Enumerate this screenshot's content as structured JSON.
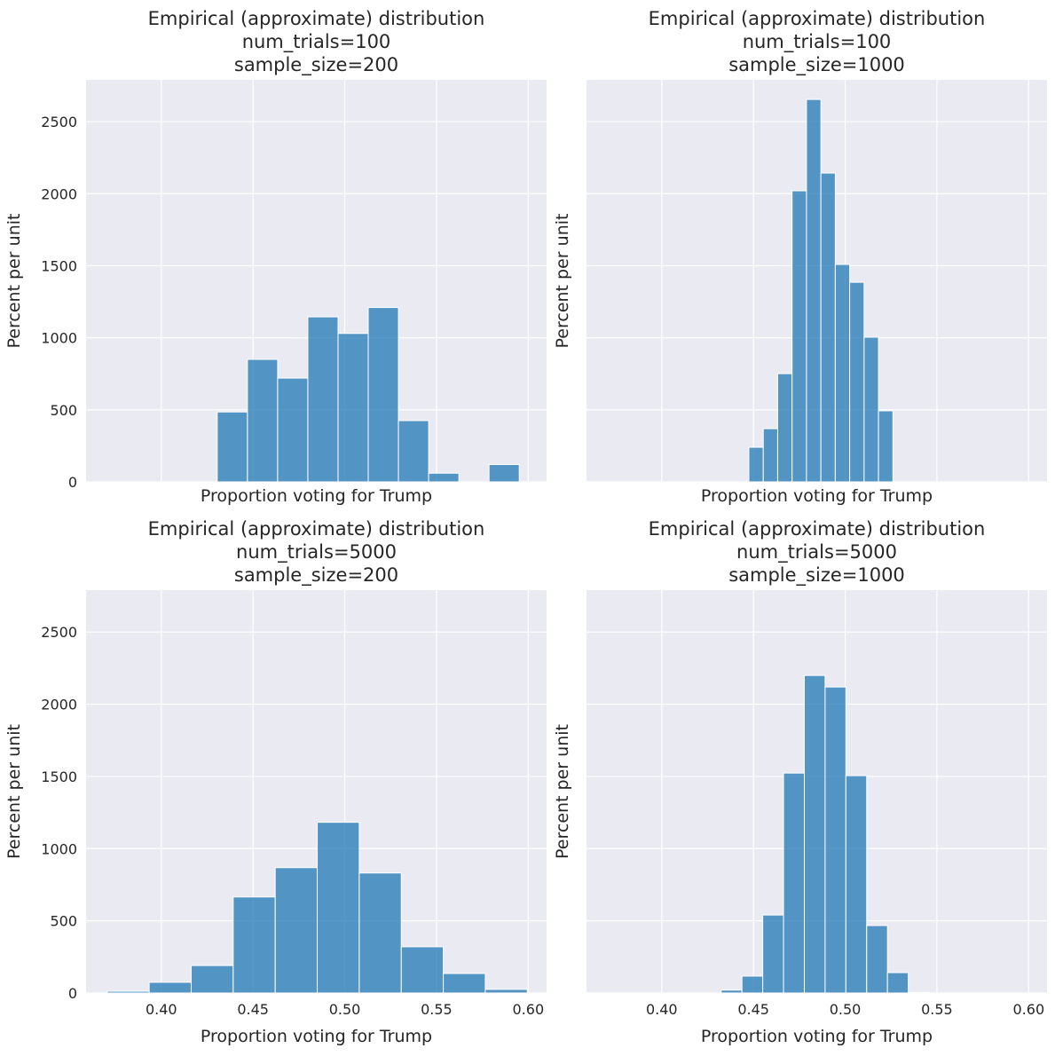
{
  "chart_data": [
    {
      "type": "bar",
      "title": [
        "Empirical (approximate) distribution",
        "num_trials=100",
        "sample_size=200"
      ],
      "xlabel": "Proportion voting for Trump",
      "ylabel": "Percent per unit",
      "xlim": [
        0.359,
        0.61
      ],
      "ylim": [
        0,
        2790
      ],
      "grid": true,
      "show_xticklabels": false,
      "show_yticklabels": true,
      "bin_start": 0.4305,
      "bin_width": 0.01646,
      "values": [
        485,
        850,
        720,
        1145,
        1030,
        1210,
        425,
        60,
        0,
        120
      ]
    },
    {
      "type": "bar",
      "title": [
        "Empirical (approximate) distribution",
        "num_trials=100",
        "sample_size=1000"
      ],
      "xlabel": "Proportion voting for Trump",
      "ylabel": "Percent per unit",
      "xlim": [
        0.359,
        0.61
      ],
      "ylim": [
        0,
        2790
      ],
      "grid": true,
      "show_xticklabels": false,
      "show_yticklabels": false,
      "bin_start": 0.4475,
      "bin_width": 0.00785,
      "values": [
        240,
        369,
        751,
        2020,
        2654,
        2143,
        1509,
        1385,
        1004,
        493
      ]
    },
    {
      "type": "bar",
      "title": [
        "Empirical (approximate) distribution",
        "num_trials=5000",
        "sample_size=200"
      ],
      "xlabel": "Proportion voting for Trump",
      "ylabel": "Percent per unit",
      "xlim": [
        0.359,
        0.61
      ],
      "ylim": [
        0,
        2790
      ],
      "grid": true,
      "show_xticklabels": true,
      "show_yticklabels": true,
      "bin_start": 0.3705,
      "bin_width": 0.0229,
      "values": [
        12,
        74,
        190,
        665,
        868,
        1182,
        831,
        320,
        135,
        25
      ]
    },
    {
      "type": "bar",
      "title": [
        "Empirical (approximate) distribution",
        "num_trials=5000",
        "sample_size=1000"
      ],
      "xlabel": "Proportion voting for Trump",
      "ylabel": "Percent per unit",
      "xlim": [
        0.359,
        0.61
      ],
      "ylim": [
        0,
        2790
      ],
      "grid": true,
      "show_xticklabels": true,
      "show_yticklabels": false,
      "bin_start": 0.4324,
      "bin_width": 0.01133,
      "values": [
        20,
        117,
        540,
        1523,
        2199,
        2119,
        1505,
        467,
        141,
        4
      ]
    }
  ],
  "xticks": [
    "0.40",
    "0.45",
    "0.50",
    "0.55",
    "0.60"
  ],
  "yticks": [
    "0",
    "500",
    "1000",
    "1500",
    "2000",
    "2500"
  ],
  "colors": {
    "bar": "#1f77b4",
    "background": "#eaeaf2",
    "grid": "#ffffff"
  }
}
